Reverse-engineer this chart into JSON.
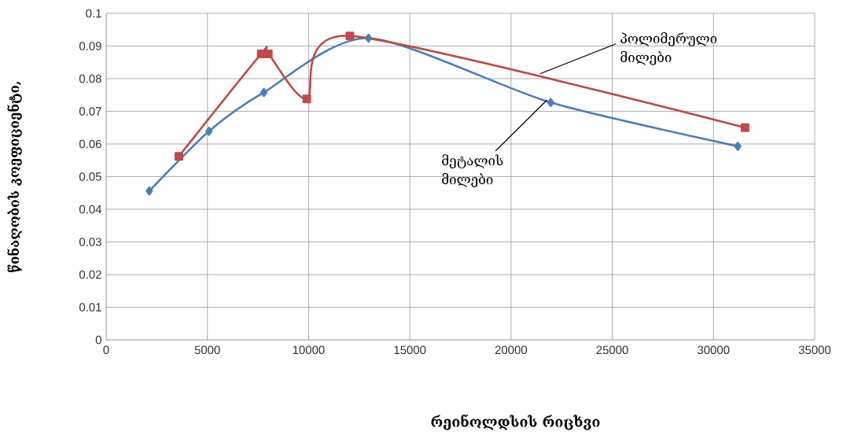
{
  "chart_data": {
    "type": "line",
    "xlabel": "რეინოლდსის რიცხვი",
    "ylabel": "წინაღობის კოეფიციენტი,",
    "series": [
      {
        "color": "#4a7ebb",
        "marker": "diamond",
        "x": [
          2130,
          5080,
          7790,
          12960,
          21960,
          31200
        ],
        "values": [
          0.0456,
          0.0639,
          0.0758,
          0.0924,
          0.0727,
          0.0593
        ]
      },
      {
        "color": "#be4b48",
        "marker": "square",
        "x": [
          3590,
          7660,
          8010,
          9910,
          12040,
          31560
        ],
        "values": [
          0.0562,
          0.0876,
          0.0876,
          0.0738,
          0.0931,
          0.065
        ]
      }
    ],
    "annotations": [
      {
        "text": "პოლიმერული მილები",
        "x": 21430,
        "y": 0.0815
      },
      {
        "text": "მეტალის მილები",
        "x": 21780,
        "y": 0.0735
      }
    ],
    "xlim": [
      0,
      35000
    ],
    "xticks": [
      0,
      5000,
      10000,
      15000,
      20000,
      25000,
      30000,
      35000
    ],
    "ylim": [
      0,
      0.1
    ],
    "yticks": [
      {
        "value": 0,
        "label": "0"
      },
      {
        "value": 0.01,
        "label": "0.01"
      },
      {
        "value": 0.02,
        "label": "0.02"
      },
      {
        "value": 0.03,
        "label": "0.03"
      },
      {
        "value": 0.04,
        "label": "0.04"
      },
      {
        "value": 0.05,
        "label": "0.05"
      },
      {
        "value": 0.06,
        "label": "0.06"
      },
      {
        "value": 0.07,
        "label": "0.07"
      },
      {
        "value": 0.08,
        "label": "0.08"
      },
      {
        "value": 0.09,
        "label": "0.09"
      },
      {
        "value": 0.1,
        "label": "0.1"
      }
    ],
    "grid": true,
    "line_style": "solid"
  }
}
